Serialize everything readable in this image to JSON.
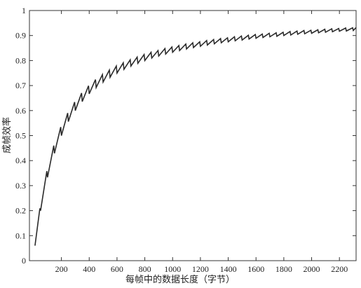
{
  "chart_data": {
    "type": "line",
    "x_label": "每帧中的数据长度（字节）",
    "y_label": "成帧效率",
    "x": [
      10,
      45,
      50,
      95,
      100,
      145,
      150,
      195,
      200,
      245,
      250,
      295,
      300,
      345,
      350,
      395,
      400,
      445,
      450,
      495,
      500,
      545,
      550,
      595,
      600,
      645,
      650,
      695,
      700,
      745,
      750,
      795,
      800,
      845,
      850,
      895,
      900,
      945,
      950,
      995,
      1000,
      1045,
      1050,
      1095,
      1100,
      1145,
      1150,
      1195,
      1200,
      1245,
      1250,
      1295,
      1300,
      1345,
      1350,
      1395,
      1400,
      1445,
      1450,
      1495,
      1500,
      1545,
      1550,
      1595,
      1600,
      1645,
      1650,
      1695,
      1700,
      1745,
      1750,
      1795,
      1800,
      1845,
      1850,
      1895,
      1900,
      1945,
      1950,
      1995,
      2000,
      2045,
      2050,
      2095,
      2100,
      2145,
      2150,
      2195,
      2200,
      2245,
      2250,
      2295,
      2300,
      2320
    ],
    "series": [
      {
        "color": "#2a2a2a",
        "values": [
          0.06,
          0.209,
          0.2,
          0.358,
          0.333,
          0.46,
          0.429,
          0.534,
          0.5,
          0.59,
          0.556,
          0.634,
          0.6,
          0.67,
          0.636,
          0.699,
          0.667,
          0.724,
          0.692,
          0.744,
          0.714,
          0.762,
          0.733,
          0.778,
          0.75,
          0.791,
          0.765,
          0.803,
          0.778,
          0.814,
          0.789,
          0.824,
          0.8,
          0.833,
          0.81,
          0.84,
          0.818,
          0.848,
          0.826,
          0.854,
          0.833,
          0.86,
          0.84,
          0.866,
          0.846,
          0.871,
          0.852,
          0.875,
          0.857,
          0.88,
          0.862,
          0.884,
          0.867,
          0.888,
          0.871,
          0.891,
          0.875,
          0.895,
          0.879,
          0.898,
          0.882,
          0.901,
          0.886,
          0.904,
          0.889,
          0.906,
          0.892,
          0.909,
          0.895,
          0.911,
          0.897,
          0.913,
          0.9,
          0.916,
          0.902,
          0.918,
          0.905,
          0.92,
          0.907,
          0.921,
          0.909,
          0.923,
          0.911,
          0.925,
          0.913,
          0.927,
          0.915,
          0.928,
          0.917,
          0.93,
          0.918,
          0.931,
          0.92,
          0.932
        ]
      }
    ],
    "xlim": [
      -30,
      2320
    ],
    "ylim": [
      0,
      1
    ],
    "xticks": [
      200,
      400,
      600,
      800,
      1000,
      1200,
      1400,
      1600,
      1800,
      2000,
      2200
    ],
    "yticks": [
      0,
      0.1,
      0.2,
      0.3,
      0.4,
      0.5,
      0.6,
      0.7,
      0.8,
      0.9,
      1
    ],
    "grid": false
  }
}
